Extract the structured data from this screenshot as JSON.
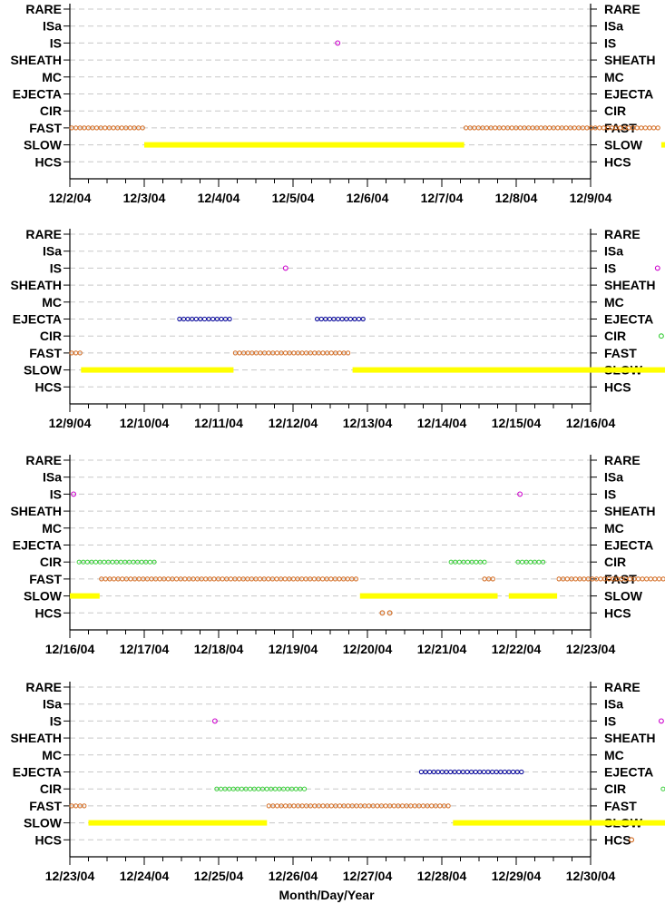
{
  "chart_data": {
    "type": "scatter",
    "xlabel": "Month/Day/Year",
    "categories": [
      "RARE",
      "ISa",
      "IS",
      "SHEATH",
      "MC",
      "EJECTA",
      "CIR",
      "FAST",
      "SLOW",
      "HCS"
    ],
    "colors": {
      "SLOW": "#ffff00",
      "FAST": "#d2691e",
      "CIR": "#33cc33",
      "EJECTA": "#000099",
      "IS": "#cc00cc",
      "HCS": "#d2691e"
    },
    "panels": [
      {
        "start": "12/2/04",
        "tick_labels": [
          "12/2/04",
          "12/3/04",
          "12/4/04",
          "12/5/04",
          "12/6/04",
          "12/7/04",
          "12/8/04",
          "12/9/04"
        ],
        "series": [
          {
            "category": "FAST",
            "segments": [
              [
                0.0,
                1.0
              ],
              [
                5.3,
                7.95
              ]
            ]
          },
          {
            "category": "SLOW",
            "segments": [
              [
                1.0,
                5.3
              ],
              [
                7.95,
                8.0
              ]
            ]
          },
          {
            "category": "IS",
            "points": [
              3.6
            ]
          }
        ]
      },
      {
        "start": "12/9/04",
        "tick_labels": [
          "12/9/04",
          "12/10/04",
          "12/11/04",
          "12/12/04",
          "12/13/04",
          "12/14/04",
          "12/15/04",
          "12/16/04"
        ],
        "series": [
          {
            "category": "FAST",
            "segments": [
              [
                0.0,
                0.15
              ],
              [
                2.2,
                3.8
              ]
            ]
          },
          {
            "category": "SLOW",
            "segments": [
              [
                0.15,
                2.2
              ],
              [
                3.8,
                8.0
              ]
            ]
          },
          {
            "category": "EJECTA",
            "segments": [
              [
                1.45,
                2.2
              ],
              [
                3.3,
                4.0
              ]
            ]
          },
          {
            "category": "IS",
            "points": [
              2.9,
              7.9
            ]
          },
          {
            "category": "CIR",
            "points": [
              7.95
            ]
          }
        ]
      },
      {
        "start": "12/16/04",
        "tick_labels": [
          "12/16/04",
          "12/17/04",
          "12/18/04",
          "12/19/04",
          "12/20/04",
          "12/21/04",
          "12/22/04",
          "12/23/04"
        ],
        "series": [
          {
            "category": "IS",
            "points": [
              0.05,
              6.05
            ]
          },
          {
            "category": "SLOW",
            "segments": [
              [
                0.0,
                0.4
              ],
              [
                3.9,
                5.75
              ],
              [
                5.9,
                6.55
              ]
            ]
          },
          {
            "category": "FAST",
            "segments": [
              [
                0.4,
                3.9
              ],
              [
                5.55,
                5.75
              ],
              [
                6.55,
                8.0
              ]
            ]
          },
          {
            "category": "CIR",
            "segments": [
              [
                0.1,
                1.2
              ],
              [
                5.1,
                5.6
              ],
              [
                6.0,
                6.4
              ]
            ]
          },
          {
            "category": "HCS",
            "points": [
              4.2,
              4.3
            ]
          }
        ]
      },
      {
        "start": "12/23/04",
        "tick_labels": [
          "12/23/04",
          "12/24/04",
          "12/25/04",
          "12/26/04",
          "12/27/04",
          "12/28/04",
          "12/29/04",
          "12/30/04"
        ],
        "series": [
          {
            "category": "FAST",
            "segments": [
              [
                0.0,
                0.25
              ],
              [
                2.65,
                5.15
              ]
            ]
          },
          {
            "category": "SLOW",
            "segments": [
              [
                0.25,
                2.65
              ],
              [
                5.15,
                8.0
              ]
            ]
          },
          {
            "category": "CIR",
            "segments": [
              [
                1.95,
                3.2
              ],
              [
                7.95,
                8.0
              ]
            ]
          },
          {
            "category": "EJECTA",
            "segments": [
              [
                4.7,
                6.1
              ]
            ]
          },
          {
            "category": "IS",
            "points": [
              1.95,
              7.95
            ]
          },
          {
            "category": "HCS",
            "points": [
              7.55
            ]
          }
        ]
      }
    ]
  }
}
